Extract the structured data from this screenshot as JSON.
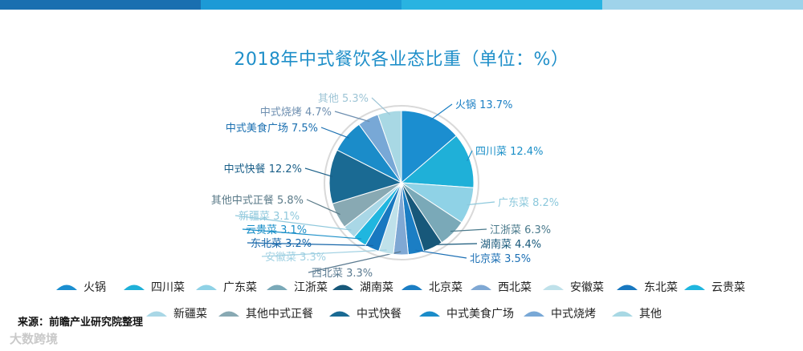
{
  "header": {
    "band_colors": [
      "#1a6fb0",
      "#1c9ad6",
      "#29b3e1",
      "#9fd3ea"
    ]
  },
  "chart_data": {
    "type": "pie",
    "title": "2018年中式餐饮各业态比重（单位：%）",
    "unit": "%",
    "slices": [
      {
        "name": "火锅",
        "value": 13.7,
        "label": "火锅 13.7%",
        "color": "#1b8ed0",
        "label_color": "#1b7fc4"
      },
      {
        "name": "四川菜",
        "value": 12.4,
        "label": "四川菜 12.4%",
        "color": "#1fb0d8",
        "label_color": "#1a8fc8"
      },
      {
        "name": "广东菜",
        "value": 8.2,
        "label": "广东菜 8.2%",
        "color": "#8fd2e6",
        "label_color": "#8cc8dc"
      },
      {
        "name": "江浙菜",
        "value": 6.3,
        "label": "江浙菜 6.3%",
        "color": "#7aa9b8",
        "label_color": "#4a7a8c"
      },
      {
        "name": "湖南菜",
        "value": 4.4,
        "label": "湖南菜 4.4%",
        "color": "#17587a",
        "label_color": "#17587a"
      },
      {
        "name": "北京菜",
        "value": 3.5,
        "label": "北京菜 3.5%",
        "color": "#1b7ec4",
        "label_color": "#1b6fb4"
      },
      {
        "name": "西北菜",
        "value": 3.3,
        "label": "西北菜 3.3%",
        "color": "#7fa8d4",
        "label_color": "#5a7a90"
      },
      {
        "name": "安徽菜",
        "value": 3.3,
        "label": "安徽菜 3.3%",
        "color": "#bfe1ea",
        "label_color": "#9fd0e2"
      },
      {
        "name": "东北菜",
        "value": 3.2,
        "label": "东北菜 3.2%",
        "color": "#1878c0",
        "label_color": "#1565a8"
      },
      {
        "name": "云贵菜",
        "value": 3.1,
        "label": "云贵菜 3.1%",
        "color": "#20b6df",
        "label_color": "#1a8fc8"
      },
      {
        "name": "新疆菜",
        "value": 3.1,
        "label": "新疆菜 3.1%",
        "color": "#a9d7e6",
        "label_color": "#8fc8dc"
      },
      {
        "name": "其他中式正餐",
        "value": 5.8,
        "label": "其他中式正餐 5.8%",
        "color": "#88a9b3",
        "label_color": "#5a7a88"
      },
      {
        "name": "中式快餐",
        "value": 12.2,
        "label": "中式快餐 12.2%",
        "color": "#1a6a93",
        "label_color": "#1a5f88"
      },
      {
        "name": "中式美食广场",
        "value": 7.5,
        "label": "中式美食广场 7.5%",
        "color": "#1b8cc9",
        "label_color": "#1a6fb0"
      },
      {
        "name": "中式烧烤",
        "value": 4.7,
        "label": "中式烧烤 4.7%",
        "color": "#78a8d6",
        "label_color": "#6e8fb0"
      },
      {
        "name": "其他",
        "value": 5.3,
        "label": "其他 5.3%",
        "color": "#a8d8e4",
        "label_color": "#9ec5d6"
      }
    ],
    "legend_position": "bottom"
  },
  "footer": {
    "source": "来源：前瞻产业研究院整理",
    "watermark": "大数跨境"
  }
}
